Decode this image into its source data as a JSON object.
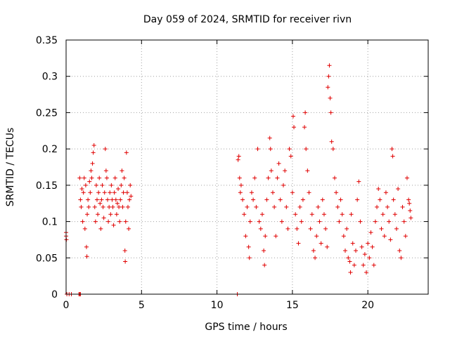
{
  "chart_data": {
    "type": "scatter",
    "title": "Day 059 of 2024, SRMTID for receiver rivn",
    "xlabel": "GPS time / hours",
    "ylabel": "SRMTID / TECUs",
    "xlim": [
      0,
      24
    ],
    "ylim": [
      0,
      0.35
    ],
    "grid": true,
    "marker": "+",
    "xticks": [
      0,
      5,
      10,
      15,
      20
    ],
    "xtick_labels": [
      "0",
      "5",
      "10",
      "15",
      "20"
    ],
    "yticks": [
      0,
      0.05,
      0.1,
      0.15,
      0.2,
      0.25,
      0.3,
      0.35
    ],
    "ytick_labels": [
      "0",
      "0.05",
      "0.1",
      "0.15",
      "0.2",
      "0.25",
      "0.3",
      "0.35"
    ],
    "series_color": "#e00000",
    "grid_color": "#a0a0a0",
    "series": [
      {
        "points": [
          [
            0.0,
            0.085
          ],
          [
            0.0,
            0.08
          ],
          [
            0.02,
            0.075
          ],
          [
            0.05,
            0.0
          ],
          [
            0.2,
            0.0
          ],
          [
            0.35,
            0.0
          ],
          [
            0.85,
            0.0
          ],
          [
            0.9,
            0.0
          ],
          [
            0.95,
            0.0
          ],
          [
            0.9,
            0.16
          ],
          [
            0.95,
            0.13
          ],
          [
            1.0,
            0.12
          ],
          [
            1.05,
            0.145
          ],
          [
            1.1,
            0.1
          ],
          [
            1.15,
            0.14
          ],
          [
            1.2,
            0.16
          ],
          [
            1.25,
            0.09
          ],
          [
            1.3,
            0.15
          ],
          [
            1.35,
            0.065
          ],
          [
            1.38,
            0.052
          ],
          [
            1.4,
            0.11
          ],
          [
            1.45,
            0.13
          ],
          [
            1.5,
            0.12
          ],
          [
            1.55,
            0.155
          ],
          [
            1.6,
            0.14
          ],
          [
            1.65,
            0.17
          ],
          [
            1.7,
            0.16
          ],
          [
            1.75,
            0.18
          ],
          [
            1.8,
            0.195
          ],
          [
            1.85,
            0.205
          ],
          [
            1.9,
            0.12
          ],
          [
            1.95,
            0.1
          ],
          [
            2.0,
            0.15
          ],
          [
            2.05,
            0.13
          ],
          [
            2.1,
            0.11
          ],
          [
            2.15,
            0.14
          ],
          [
            2.2,
            0.16
          ],
          [
            2.25,
            0.125
          ],
          [
            2.3,
            0.09
          ],
          [
            2.35,
            0.13
          ],
          [
            2.4,
            0.15
          ],
          [
            2.45,
            0.12
          ],
          [
            2.5,
            0.105
          ],
          [
            2.55,
            0.14
          ],
          [
            2.6,
            0.2
          ],
          [
            2.65,
            0.17
          ],
          [
            2.7,
            0.16
          ],
          [
            2.75,
            0.13
          ],
          [
            2.8,
            0.1
          ],
          [
            2.85,
            0.12
          ],
          [
            2.9,
            0.14
          ],
          [
            2.95,
            0.11
          ],
          [
            3.0,
            0.15
          ],
          [
            3.05,
            0.13
          ],
          [
            3.1,
            0.12
          ],
          [
            3.15,
            0.095
          ],
          [
            3.2,
            0.14
          ],
          [
            3.25,
            0.16
          ],
          [
            3.3,
            0.13
          ],
          [
            3.35,
            0.11
          ],
          [
            3.4,
            0.125
          ],
          [
            3.45,
            0.145
          ],
          [
            3.5,
            0.12
          ],
          [
            3.55,
            0.1
          ],
          [
            3.6,
            0.13
          ],
          [
            3.65,
            0.15
          ],
          [
            3.7,
            0.17
          ],
          [
            3.75,
            0.12
          ],
          [
            3.8,
            0.14
          ],
          [
            3.85,
            0.16
          ],
          [
            3.9,
            0.06
          ],
          [
            3.92,
            0.045
          ],
          [
            3.95,
            0.1
          ],
          [
            4.0,
            0.195
          ],
          [
            4.05,
            0.14
          ],
          [
            4.1,
            0.12
          ],
          [
            4.15,
            0.09
          ],
          [
            4.2,
            0.13
          ],
          [
            4.25,
            0.15
          ],
          [
            4.3,
            0.135
          ],
          [
            11.35,
            0.0
          ],
          [
            11.4,
            0.185
          ],
          [
            11.45,
            0.19
          ],
          [
            11.5,
            0.16
          ],
          [
            11.55,
            0.14
          ],
          [
            11.6,
            0.15
          ],
          [
            11.7,
            0.13
          ],
          [
            11.8,
            0.11
          ],
          [
            11.9,
            0.08
          ],
          [
            12.0,
            0.12
          ],
          [
            12.1,
            0.065
          ],
          [
            12.15,
            0.05
          ],
          [
            12.2,
            0.1
          ],
          [
            12.3,
            0.14
          ],
          [
            12.4,
            0.13
          ],
          [
            12.5,
            0.16
          ],
          [
            12.6,
            0.12
          ],
          [
            12.7,
            0.2
          ],
          [
            12.8,
            0.1
          ],
          [
            12.9,
            0.09
          ],
          [
            13.0,
            0.11
          ],
          [
            13.1,
            0.06
          ],
          [
            13.15,
            0.04
          ],
          [
            13.2,
            0.08
          ],
          [
            13.3,
            0.13
          ],
          [
            13.4,
            0.16
          ],
          [
            13.5,
            0.215
          ],
          [
            13.55,
            0.2
          ],
          [
            13.6,
            0.17
          ],
          [
            13.7,
            0.14
          ],
          [
            13.8,
            0.12
          ],
          [
            13.9,
            0.08
          ],
          [
            14.0,
            0.16
          ],
          [
            14.1,
            0.18
          ],
          [
            14.2,
            0.13
          ],
          [
            14.3,
            0.1
          ],
          [
            14.4,
            0.15
          ],
          [
            14.5,
            0.17
          ],
          [
            14.6,
            0.12
          ],
          [
            14.7,
            0.09
          ],
          [
            14.8,
            0.2
          ],
          [
            14.9,
            0.19
          ],
          [
            15.0,
            0.14
          ],
          [
            15.05,
            0.245
          ],
          [
            15.1,
            0.23
          ],
          [
            15.2,
            0.11
          ],
          [
            15.3,
            0.09
          ],
          [
            15.4,
            0.07
          ],
          [
            15.5,
            0.12
          ],
          [
            15.6,
            0.1
          ],
          [
            15.7,
            0.13
          ],
          [
            15.8,
            0.23
          ],
          [
            15.85,
            0.25
          ],
          [
            15.9,
            0.2
          ],
          [
            16.0,
            0.17
          ],
          [
            16.1,
            0.14
          ],
          [
            16.2,
            0.09
          ],
          [
            16.3,
            0.11
          ],
          [
            16.4,
            0.06
          ],
          [
            16.5,
            0.05
          ],
          [
            16.6,
            0.08
          ],
          [
            16.7,
            0.12
          ],
          [
            16.8,
            0.1
          ],
          [
            16.9,
            0.07
          ],
          [
            17.0,
            0.13
          ],
          [
            17.1,
            0.11
          ],
          [
            17.2,
            0.09
          ],
          [
            17.3,
            0.065
          ],
          [
            17.35,
            0.285
          ],
          [
            17.4,
            0.3
          ],
          [
            17.45,
            0.315
          ],
          [
            17.5,
            0.27
          ],
          [
            17.55,
            0.25
          ],
          [
            17.6,
            0.21
          ],
          [
            17.7,
            0.2
          ],
          [
            17.8,
            0.16
          ],
          [
            17.9,
            0.14
          ],
          [
            18.0,
            0.12
          ],
          [
            18.1,
            0.1
          ],
          [
            18.2,
            0.13
          ],
          [
            18.3,
            0.11
          ],
          [
            18.4,
            0.08
          ],
          [
            18.5,
            0.06
          ],
          [
            18.6,
            0.09
          ],
          [
            18.7,
            0.05
          ],
          [
            18.8,
            0.045
          ],
          [
            18.85,
            0.03
          ],
          [
            18.9,
            0.11
          ],
          [
            19.0,
            0.07
          ],
          [
            19.1,
            0.04
          ],
          [
            19.2,
            0.06
          ],
          [
            19.3,
            0.13
          ],
          [
            19.4,
            0.155
          ],
          [
            19.5,
            0.1
          ],
          [
            19.6,
            0.065
          ],
          [
            19.7,
            0.04
          ],
          [
            19.8,
            0.055
          ],
          [
            19.9,
            0.03
          ],
          [
            20.0,
            0.07
          ],
          [
            20.1,
            0.05
          ],
          [
            20.2,
            0.085
          ],
          [
            20.3,
            0.065
          ],
          [
            20.4,
            0.04
          ],
          [
            20.5,
            0.1
          ],
          [
            20.6,
            0.12
          ],
          [
            20.7,
            0.145
          ],
          [
            20.8,
            0.13
          ],
          [
            20.9,
            0.09
          ],
          [
            21.0,
            0.11
          ],
          [
            21.1,
            0.08
          ],
          [
            21.2,
            0.14
          ],
          [
            21.3,
            0.12
          ],
          [
            21.4,
            0.1
          ],
          [
            21.5,
            0.075
          ],
          [
            21.6,
            0.2
          ],
          [
            21.65,
            0.19
          ],
          [
            21.7,
            0.13
          ],
          [
            21.8,
            0.11
          ],
          [
            21.9,
            0.09
          ],
          [
            22.0,
            0.145
          ],
          [
            22.1,
            0.06
          ],
          [
            22.2,
            0.05
          ],
          [
            22.3,
            0.12
          ],
          [
            22.4,
            0.1
          ],
          [
            22.5,
            0.08
          ],
          [
            22.6,
            0.16
          ],
          [
            22.7,
            0.13
          ],
          [
            22.75,
            0.125
          ],
          [
            22.8,
            0.115
          ],
          [
            22.85,
            0.105
          ]
        ]
      }
    ]
  }
}
